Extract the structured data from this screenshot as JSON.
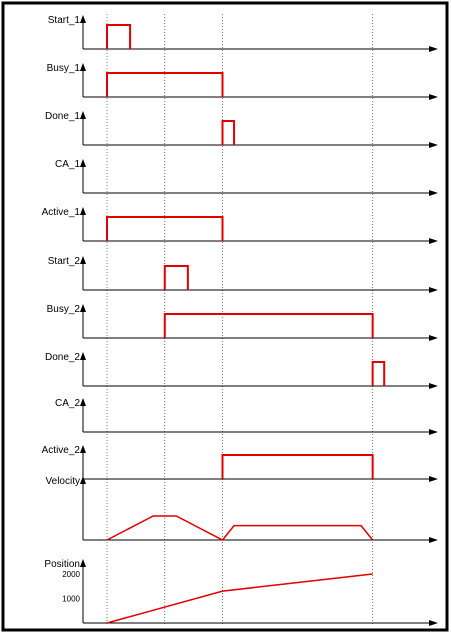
{
  "signals": [
    {
      "label": "Start_1",
      "type": "pulse",
      "pulses": [
        [
          0.0,
          1.0
        ]
      ]
    },
    {
      "label": "Busy_1",
      "type": "pulse",
      "pulses": [
        [
          0.0,
          5.0
        ]
      ]
    },
    {
      "label": "Done_1",
      "type": "pulse",
      "pulses": [
        [
          5.0,
          5.5
        ]
      ]
    },
    {
      "label": "CA_1",
      "type": "pulse",
      "pulses": []
    },
    {
      "label": "Active_1",
      "type": "pulse",
      "pulses": [
        [
          0.0,
          5.0
        ]
      ]
    },
    {
      "label": "Start_2",
      "type": "pulse",
      "pulses": [
        [
          2.5,
          3.5
        ]
      ]
    },
    {
      "label": "Busy_2",
      "type": "pulse",
      "pulses": [
        [
          2.5,
          11.5
        ]
      ]
    },
    {
      "label": "Done_2",
      "type": "pulse",
      "pulses": [
        [
          11.5,
          12.0
        ]
      ]
    },
    {
      "label": "CA_2",
      "type": "pulse",
      "pulses": []
    },
    {
      "label": "Active_2",
      "type": "pulse",
      "pulses": [
        [
          5.0,
          11.5
        ]
      ]
    },
    {
      "label": "Velocity",
      "type": "curve",
      "points": [
        [
          0.0,
          0
        ],
        [
          2.0,
          1
        ],
        [
          3.0,
          1
        ],
        [
          5.0,
          0
        ],
        [
          5.5,
          0.6
        ],
        [
          11.0,
          0.6
        ],
        [
          11.5,
          0
        ]
      ]
    },
    {
      "label": "Position",
      "type": "curve",
      "ticks": [
        "2000",
        "1000"
      ],
      "points": [
        [
          0.0,
          0
        ],
        [
          5.0,
          1300
        ],
        [
          11.5,
          2000
        ]
      ]
    }
  ],
  "markers": [
    0.0,
    2.5,
    5.0,
    11.5
  ],
  "colors": {
    "signal": "#e00000",
    "axis": "#000000",
    "marker": "#555555"
  }
}
